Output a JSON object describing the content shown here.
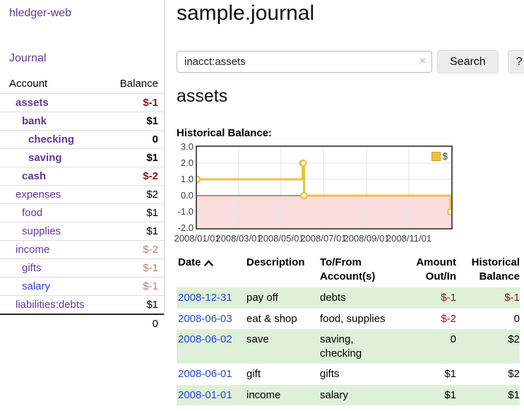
{
  "sidebar": {
    "app_title": "hledger-web",
    "journal_label": "Journal",
    "accounts_table": {
      "headers": {
        "account": "Account",
        "balance": "Balance"
      },
      "rows": [
        {
          "name": "assets",
          "balance": "$-1"
        },
        {
          "name": "bank",
          "balance": "$1"
        },
        {
          "name": "checking",
          "balance": "0"
        },
        {
          "name": "saving",
          "balance": "$1"
        },
        {
          "name": "cash",
          "balance": "$-2"
        },
        {
          "name": "expenses",
          "balance": "$2"
        },
        {
          "name": "food",
          "balance": "$1"
        },
        {
          "name": "supplies",
          "balance": "$1"
        },
        {
          "name": "income",
          "balance": "$-2"
        },
        {
          "name": "gifts",
          "balance": "$-1"
        },
        {
          "name": "salary",
          "balance": "$-1"
        },
        {
          "name": "liabilities:debts",
          "balance": "$1"
        }
      ],
      "total": "0"
    }
  },
  "main": {
    "title": "sample.journal",
    "search": {
      "query": "inacct:assets",
      "clear_icon": "×",
      "button_label": "Search",
      "help_label": "?"
    },
    "account_heading": "assets",
    "chart_label": "Historical Balance:"
  },
  "chart_data": {
    "type": "line",
    "title": "Historical Balance:",
    "x_range": [
      "2008-01-01",
      "2009-01-01"
    ],
    "ylim": [
      -2.0,
      3.0
    ],
    "yticks": [
      "3.0",
      "2.0",
      "1.0",
      "0.0",
      "-1.0",
      "-2.0"
    ],
    "xticks": [
      "2008/01/01",
      "2008/03/01",
      "2008/05/01",
      "2008/07/01",
      "2008/09/01",
      "2008/11/01"
    ],
    "series": [
      {
        "name": "$",
        "color": "#edc240",
        "points": [
          [
            "2008-01-01",
            1
          ],
          [
            "2008-06-01",
            2
          ],
          [
            "2008-06-02",
            2
          ],
          [
            "2008-06-03",
            0
          ],
          [
            "2008-12-31",
            -1
          ]
        ]
      }
    ],
    "legend": {
      "label": "$",
      "position": "top-right"
    },
    "grid": true,
    "negative_region_fill": "#fbdddd",
    "zero_line_color": "#9c1a1e"
  },
  "register_table": {
    "headers": {
      "date": "Date",
      "description": "Description",
      "accounts": "To/From Account(s)",
      "amount": "Amount Out/In",
      "balance": "Historical Balance"
    },
    "rows": [
      {
        "date": "2008-12-31",
        "description": "pay off",
        "accounts": "debts",
        "amount": "$-1",
        "balance": "$-1"
      },
      {
        "date": "2008-06-03",
        "description": "eat & shop",
        "accounts": "food, supplies",
        "amount": "$-2",
        "balance": "0"
      },
      {
        "date": "2008-06-02",
        "description": "save",
        "accounts": "saving, checking",
        "amount": "0",
        "balance": "$2"
      },
      {
        "date": "2008-06-01",
        "description": "gift",
        "accounts": "gifts",
        "amount": "$1",
        "balance": "$2"
      },
      {
        "date": "2008-01-01",
        "description": "income",
        "accounts": "salary",
        "amount": "$1",
        "balance": "$1"
      }
    ]
  }
}
